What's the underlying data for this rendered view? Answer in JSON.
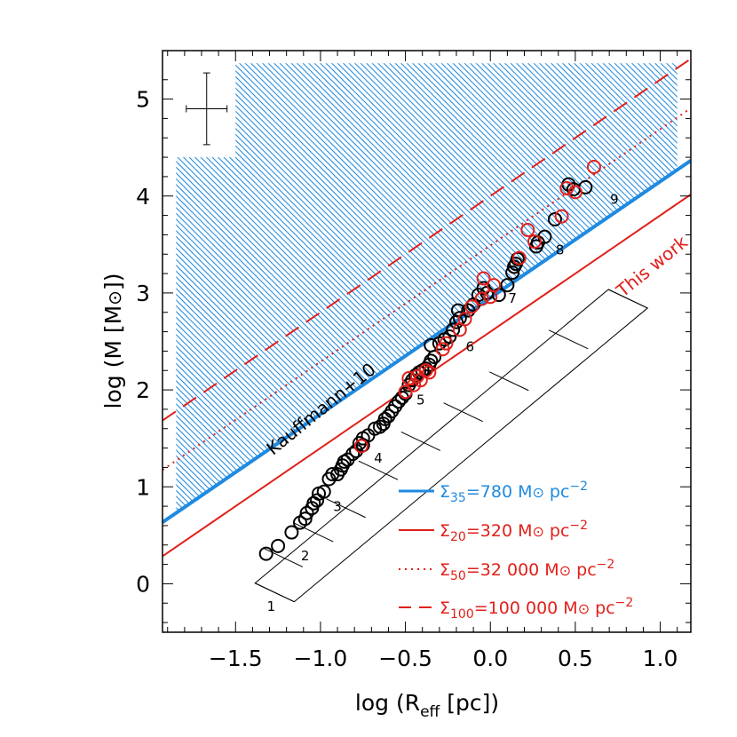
{
  "chart_data": {
    "type": "scatter",
    "xlabel": {
      "main": "log (R",
      "sub": "eff",
      "tail": " [pc])"
    },
    "ylabel": {
      "main": "log (M [M",
      "sun": "⊙",
      "tail": "])"
    },
    "xlim": [
      -1.93,
      1.18
    ],
    "ylim": [
      -0.5,
      5.5
    ],
    "x_ticks": [
      -1.5,
      -1.0,
      -0.5,
      0.0,
      0.5,
      1.0
    ],
    "x_tick_labels": [
      "−1.5",
      "−1.0",
      "−0.5",
      "0.0",
      "0.5",
      "1.0"
    ],
    "y_ticks": [
      0,
      1,
      2,
      3,
      4,
      5
    ],
    "y_tick_labels": [
      "0",
      "1",
      "2",
      "3",
      "4",
      "5"
    ],
    "colors": {
      "blue": "#1f8ae0",
      "red": "#e0201a",
      "black": "#000000"
    },
    "lines": [
      {
        "id": "sigma35",
        "color": "#1f8ae0",
        "style": "solid",
        "width": 4,
        "slope": 1.2,
        "intercept": 2.95
      },
      {
        "id": "sigma20",
        "color": "#e0201a",
        "style": "solid",
        "width": 2,
        "slope": 1.2,
        "intercept": 2.6
      },
      {
        "id": "sigma50",
        "color": "#e0201a",
        "style": "dotted",
        "width": 2,
        "slope": 1.2,
        "intercept": 3.49
      },
      {
        "id": "sigma100",
        "color": "#e0201a",
        "style": "dashed",
        "width": 2,
        "slope": 1.2,
        "intercept": 4.0
      }
    ],
    "hatched_region": {
      "color": "#1f8ae0",
      "above_line": "sigma35",
      "from_x": -1.85,
      "to_x": 1.1,
      "top_y": 5.37
    },
    "error_bar": {
      "x": -1.67,
      "y": 4.9,
      "dx": 0.12,
      "dy": 0.37
    },
    "series": [
      {
        "color": "#000000",
        "points": [
          [
            -1.32,
            0.31
          ],
          [
            -1.25,
            0.39
          ],
          [
            -1.17,
            0.53
          ],
          [
            -1.12,
            0.63
          ],
          [
            -1.09,
            0.67
          ],
          [
            -1.08,
            0.73
          ],
          [
            -1.05,
            0.78
          ],
          [
            -1.04,
            0.83
          ],
          [
            -1.02,
            0.86
          ],
          [
            -1.01,
            0.93
          ],
          [
            -0.98,
            0.95
          ],
          [
            -0.95,
            1.08
          ],
          [
            -0.93,
            1.13
          ],
          [
            -0.9,
            1.13
          ],
          [
            -0.88,
            1.18
          ],
          [
            -0.87,
            1.22
          ],
          [
            -0.86,
            1.26
          ],
          [
            -0.84,
            1.28
          ],
          [
            -0.81,
            1.34
          ],
          [
            -0.79,
            1.37
          ],
          [
            -0.77,
            1.45
          ],
          [
            -0.75,
            1.43
          ],
          [
            -0.75,
            1.5
          ],
          [
            -0.72,
            1.53
          ],
          [
            -0.68,
            1.6
          ],
          [
            -0.65,
            1.62
          ],
          [
            -0.63,
            1.65
          ],
          [
            -0.62,
            1.7
          ],
          [
            -0.6,
            1.73
          ],
          [
            -0.58,
            1.78
          ],
          [
            -0.56,
            1.83
          ],
          [
            -0.54,
            1.88
          ],
          [
            -0.52,
            1.92
          ],
          [
            -0.5,
            1.96
          ],
          [
            -0.48,
            2.05
          ],
          [
            -0.46,
            2.1
          ],
          [
            -0.44,
            2.15
          ],
          [
            -0.42,
            2.18
          ],
          [
            -0.4,
            2.2
          ],
          [
            -0.38,
            2.22
          ],
          [
            -0.36,
            2.26
          ],
          [
            -0.35,
            2.3
          ],
          [
            -0.33,
            2.34
          ],
          [
            -0.35,
            2.46
          ],
          [
            -0.3,
            2.48
          ],
          [
            -0.27,
            2.52
          ],
          [
            -0.24,
            2.55
          ],
          [
            -0.22,
            2.62
          ],
          [
            -0.2,
            2.7
          ],
          [
            -0.18,
            2.74
          ],
          [
            -0.19,
            2.82
          ],
          [
            -0.13,
            2.82
          ],
          [
            -0.1,
            2.88
          ],
          [
            -0.07,
            2.98
          ],
          [
            -0.04,
            3.05
          ],
          [
            -0.02,
            3.0
          ],
          [
            0.05,
            2.98
          ],
          [
            0.1,
            3.08
          ],
          [
            0.13,
            3.21
          ],
          [
            0.14,
            3.27
          ],
          [
            0.15,
            3.3
          ],
          [
            0.16,
            3.35
          ],
          [
            0.27,
            3.48
          ],
          [
            0.28,
            3.52
          ],
          [
            0.32,
            3.58
          ],
          [
            0.38,
            3.76
          ],
          [
            0.46,
            4.12
          ],
          [
            0.49,
            4.07
          ],
          [
            0.56,
            4.09
          ]
        ]
      },
      {
        "color": "#e0201a",
        "points": [
          [
            -0.76,
            1.42
          ],
          [
            -0.5,
            1.98
          ],
          [
            -0.48,
            2.12
          ],
          [
            -0.45,
            2.05
          ],
          [
            -0.43,
            2.14
          ],
          [
            -0.41,
            2.1
          ],
          [
            -0.38,
            2.2
          ],
          [
            -0.36,
            2.18
          ],
          [
            -0.28,
            2.42
          ],
          [
            -0.26,
            2.48
          ],
          [
            -0.18,
            2.62
          ],
          [
            -0.15,
            2.73
          ],
          [
            -0.11,
            2.86
          ],
          [
            -0.05,
            2.94
          ],
          [
            -0.04,
            3.15
          ],
          [
            0.0,
            2.96
          ],
          [
            0.02,
            3.08
          ],
          [
            0.17,
            3.36
          ],
          [
            0.22,
            3.65
          ],
          [
            0.26,
            3.53
          ],
          [
            0.42,
            3.79
          ],
          [
            0.45,
            4.08
          ],
          [
            0.5,
            4.04
          ],
          [
            0.61,
            4.3
          ]
        ]
      }
    ],
    "bins": {
      "direction": [
        0.64,
        0.768
      ],
      "perp": [
        0.768,
        -0.64
      ],
      "half_width": 0.15,
      "boundaries": [
        [
          -1.27,
          -0.09
        ],
        [
          -1.22,
          0.27
        ],
        [
          -1.04,
          0.53
        ],
        [
          -0.85,
          0.78
        ],
        [
          -0.66,
          1.17
        ],
        [
          -0.41,
          1.47
        ],
        [
          -0.16,
          1.77
        ],
        [
          0.11,
          2.09
        ],
        [
          0.46,
          2.52
        ],
        [
          0.81,
          2.94
        ]
      ],
      "labels": [
        "1",
        "2",
        "3",
        "4",
        "5",
        "6",
        "7",
        "8",
        "9"
      ],
      "label_positions": [
        [
          -1.29,
          -0.28
        ],
        [
          -1.09,
          0.24
        ],
        [
          -0.9,
          0.75
        ],
        [
          -0.66,
          1.25
        ],
        [
          -0.41,
          1.85
        ],
        [
          -0.12,
          2.4
        ],
        [
          0.13,
          2.9
        ],
        [
          0.41,
          3.4
        ],
        [
          0.73,
          3.92
        ]
      ]
    },
    "annotations": [
      {
        "id": "kauffmann-label",
        "text": "Kauffmann+10",
        "color": "#000000",
        "x": -1.28,
        "y": 1.32,
        "angle": -39.0
      },
      {
        "id": "this-work-label",
        "text": "This work",
        "color": "#e0201a",
        "x": 0.78,
        "y": 2.95,
        "angle": -39.0
      }
    ],
    "legend": {
      "placement": "bottom-right",
      "entries": [
        {
          "line": "sigma35",
          "color": "#1f8ae0",
          "symbol": "Σ",
          "sub": "35",
          "value": "=780 M",
          "sun": "⊙",
          "unit": " pc",
          "exp": "−2"
        },
        {
          "line": "sigma20",
          "color": "#e0201a",
          "symbol": "Σ",
          "sub": "20",
          "value": "=320 M",
          "sun": "⊙",
          "unit": " pc",
          "exp": "−2"
        },
        {
          "line": "sigma50",
          "color": "#e0201a",
          "symbol": "Σ",
          "sub": "50",
          "value": "=32 000 M",
          "sun": "⊙",
          "unit": " pc",
          "exp": "−2"
        },
        {
          "line": "sigma100",
          "color": "#e0201a",
          "symbol": "Σ",
          "sub": "100",
          "value": "=100 000 M",
          "sun": "⊙",
          "unit": " pc",
          "exp": "−2"
        }
      ]
    }
  }
}
